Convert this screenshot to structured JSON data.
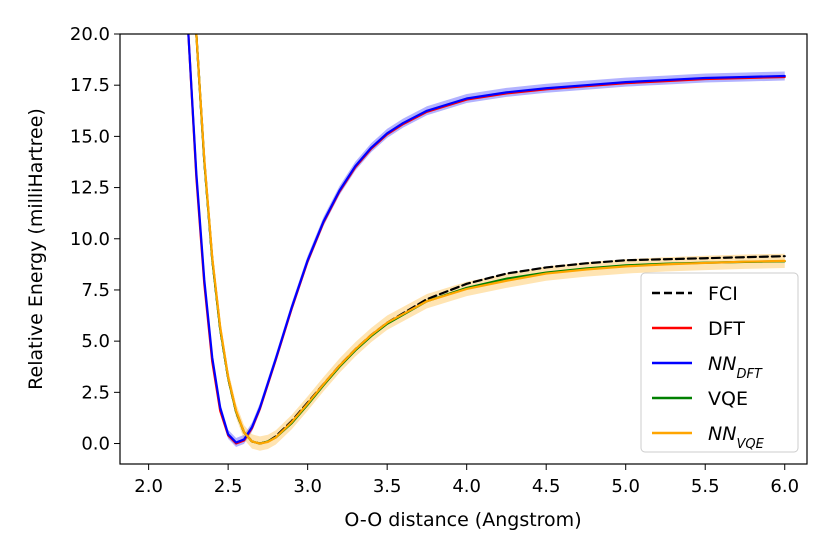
{
  "chart_data": {
    "type": "line",
    "title": "",
    "xlabel": "O-O distance (Angstrom)",
    "ylabel": "Relative Energy (milliHartree)",
    "xlim": [
      1.82,
      6.14
    ],
    "ylim": [
      -1.0,
      20.0
    ],
    "xticks": [
      2.0,
      2.5,
      3.0,
      3.5,
      4.0,
      4.5,
      5.0,
      5.5,
      6.0
    ],
    "xtick_labels": [
      "2.0",
      "2.5",
      "3.0",
      "3.5",
      "4.0",
      "4.5",
      "5.0",
      "5.5",
      "6.0"
    ],
    "yticks": [
      0.0,
      2.5,
      5.0,
      7.5,
      10.0,
      12.5,
      15.0,
      17.5,
      20.0
    ],
    "ytick_labels": [
      "0.0",
      "2.5",
      "5.0",
      "7.5",
      "10.0",
      "12.5",
      "15.0",
      "17.5",
      "20.0"
    ],
    "grid": false,
    "legend_position": "bottom-right",
    "series": [
      {
        "name": "FCI",
        "legend_label": "FCI",
        "color": "#000000",
        "dash": true,
        "band": 0,
        "x": [
          2.3,
          2.35,
          2.4,
          2.45,
          2.5,
          2.55,
          2.6,
          2.65,
          2.7,
          2.75,
          2.8,
          2.9,
          3.0,
          3.1,
          3.2,
          3.3,
          3.4,
          3.5,
          3.75,
          4.0,
          4.25,
          4.5,
          4.75,
          5.0,
          5.25,
          5.5,
          5.75,
          6.0
        ],
        "y": [
          20.0,
          13.8,
          9.0,
          5.6,
          3.2,
          1.55,
          0.55,
          0.1,
          0.0,
          0.1,
          0.35,
          1.1,
          2.0,
          2.9,
          3.8,
          4.6,
          5.3,
          5.9,
          7.05,
          7.8,
          8.3,
          8.6,
          8.8,
          8.95,
          9.0,
          9.05,
          9.1,
          9.15
        ]
      },
      {
        "name": "DFT",
        "legend_label": "DFT",
        "color": "#ff0000",
        "dash": false,
        "band": 0,
        "x": [
          2.25,
          2.3,
          2.35,
          2.4,
          2.45,
          2.5,
          2.55,
          2.6,
          2.65,
          2.7,
          2.8,
          2.9,
          3.0,
          3.1,
          3.2,
          3.3,
          3.4,
          3.5,
          3.6,
          3.75,
          4.0,
          4.25,
          4.5,
          4.75,
          5.0,
          5.25,
          5.5,
          5.75,
          6.0
        ],
        "y": [
          20.0,
          13.0,
          7.8,
          4.0,
          1.6,
          0.4,
          0.0,
          0.15,
          0.75,
          1.7,
          4.1,
          6.6,
          8.9,
          10.8,
          12.3,
          13.5,
          14.4,
          15.1,
          15.6,
          16.2,
          16.8,
          17.1,
          17.3,
          17.45,
          17.6,
          17.7,
          17.8,
          17.85,
          17.9
        ]
      },
      {
        "name": "NN_DFT",
        "legend_label": "NN",
        "legend_sub": "DFT",
        "color": "#0000ff",
        "dash": false,
        "band": 0.22,
        "x": [
          2.25,
          2.3,
          2.35,
          2.4,
          2.45,
          2.5,
          2.55,
          2.6,
          2.65,
          2.7,
          2.8,
          2.9,
          3.0,
          3.1,
          3.2,
          3.3,
          3.4,
          3.5,
          3.6,
          3.75,
          4.0,
          4.25,
          4.5,
          4.75,
          5.0,
          5.25,
          5.5,
          5.75,
          6.0
        ],
        "y": [
          20.0,
          13.2,
          8.0,
          4.2,
          1.75,
          0.45,
          0.05,
          0.2,
          0.8,
          1.75,
          4.15,
          6.65,
          8.95,
          10.85,
          12.35,
          13.55,
          14.45,
          15.15,
          15.65,
          16.25,
          16.85,
          17.15,
          17.35,
          17.5,
          17.65,
          17.75,
          17.85,
          17.9,
          17.95
        ]
      },
      {
        "name": "VQE",
        "legend_label": "VQE",
        "color": "#008000",
        "dash": false,
        "band": 0,
        "x": [
          2.3,
          2.35,
          2.4,
          2.45,
          2.5,
          2.55,
          2.6,
          2.65,
          2.7,
          2.75,
          2.8,
          2.9,
          3.0,
          3.1,
          3.2,
          3.3,
          3.4,
          3.5,
          3.75,
          4.0,
          4.25,
          4.5,
          4.75,
          5.0,
          5.25,
          5.5,
          5.75,
          6.0
        ],
        "y": [
          20.0,
          13.8,
          9.0,
          5.6,
          3.2,
          1.55,
          0.55,
          0.1,
          0.0,
          0.1,
          0.3,
          1.0,
          1.9,
          2.85,
          3.75,
          4.55,
          5.25,
          5.85,
          6.95,
          7.6,
          8.05,
          8.35,
          8.55,
          8.7,
          8.78,
          8.83,
          8.87,
          8.9
        ]
      },
      {
        "name": "NN_VQE",
        "legend_label": "NN",
        "legend_sub": "VQE",
        "color": "#ffa500",
        "dash": false,
        "band": 0.35,
        "x": [
          2.3,
          2.35,
          2.4,
          2.45,
          2.5,
          2.55,
          2.6,
          2.65,
          2.7,
          2.75,
          2.8,
          2.9,
          3.0,
          3.1,
          3.2,
          3.3,
          3.4,
          3.5,
          3.75,
          4.0,
          4.25,
          4.5,
          4.75,
          5.0,
          5.25,
          5.5,
          5.75,
          6.0
        ],
        "y": [
          20.0,
          13.9,
          9.1,
          5.7,
          3.25,
          1.6,
          0.55,
          0.1,
          0.0,
          0.08,
          0.3,
          1.05,
          1.95,
          2.9,
          3.8,
          4.6,
          5.3,
          5.9,
          6.95,
          7.55,
          7.95,
          8.3,
          8.5,
          8.65,
          8.75,
          8.82,
          8.88,
          8.92
        ]
      }
    ]
  }
}
